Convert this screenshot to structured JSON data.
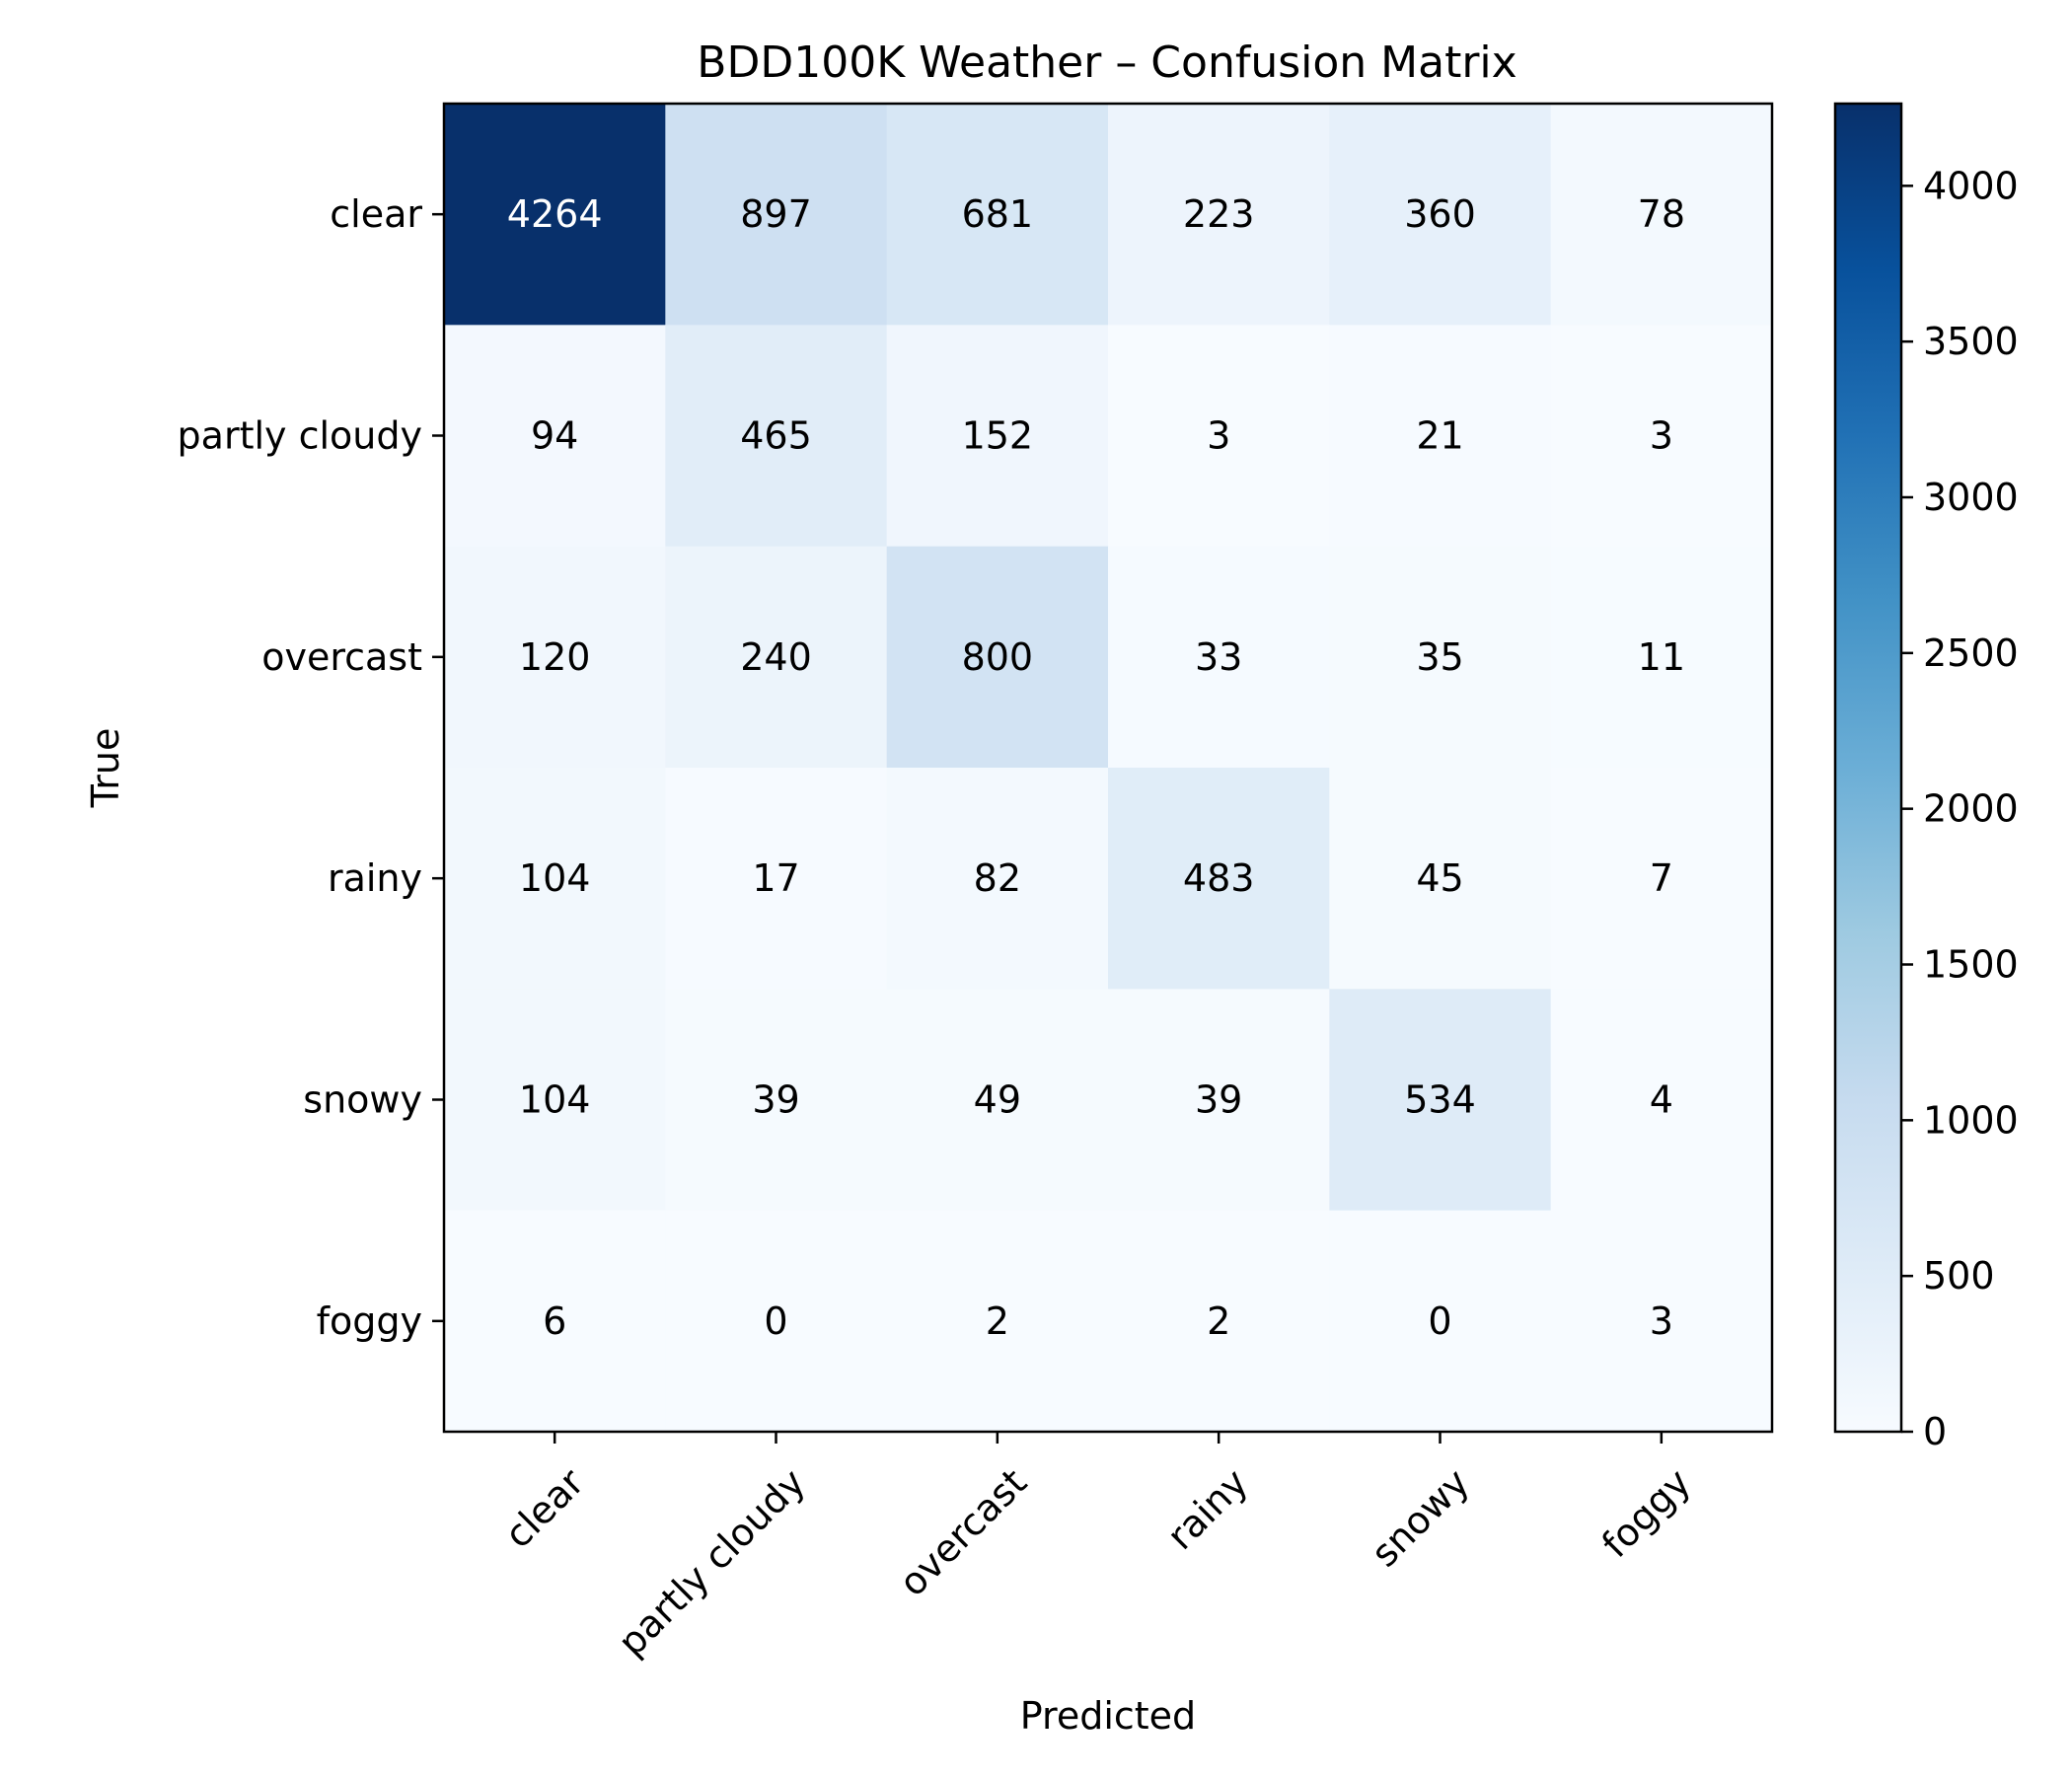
{
  "chart_data": {
    "type": "heatmap",
    "title": "BDD100K Weather – Confusion Matrix",
    "xlabel": "Predicted",
    "ylabel": "True",
    "x_categories": [
      "clear",
      "partly cloudy",
      "overcast",
      "rainy",
      "snowy",
      "foggy"
    ],
    "y_categories": [
      "clear",
      "partly cloudy",
      "overcast",
      "rainy",
      "snowy",
      "foggy"
    ],
    "values": [
      [
        4264,
        897,
        681,
        223,
        360,
        78
      ],
      [
        94,
        465,
        152,
        3,
        21,
        3
      ],
      [
        120,
        240,
        800,
        33,
        35,
        11
      ],
      [
        104,
        17,
        82,
        483,
        45,
        7
      ],
      [
        104,
        39,
        49,
        39,
        534,
        4
      ],
      [
        6,
        0,
        2,
        2,
        0,
        3
      ]
    ],
    "colormap": "Blues",
    "colorbar": {
      "range": [
        0,
        4264
      ],
      "ticks": [
        0,
        500,
        1000,
        1500,
        2000,
        2500,
        3000,
        3500,
        4000
      ]
    },
    "grid": false,
    "colors": {
      "low": "#f7fbff",
      "high": "#08306b",
      "text_dark": "#000000",
      "text_light": "#ffffff"
    }
  }
}
